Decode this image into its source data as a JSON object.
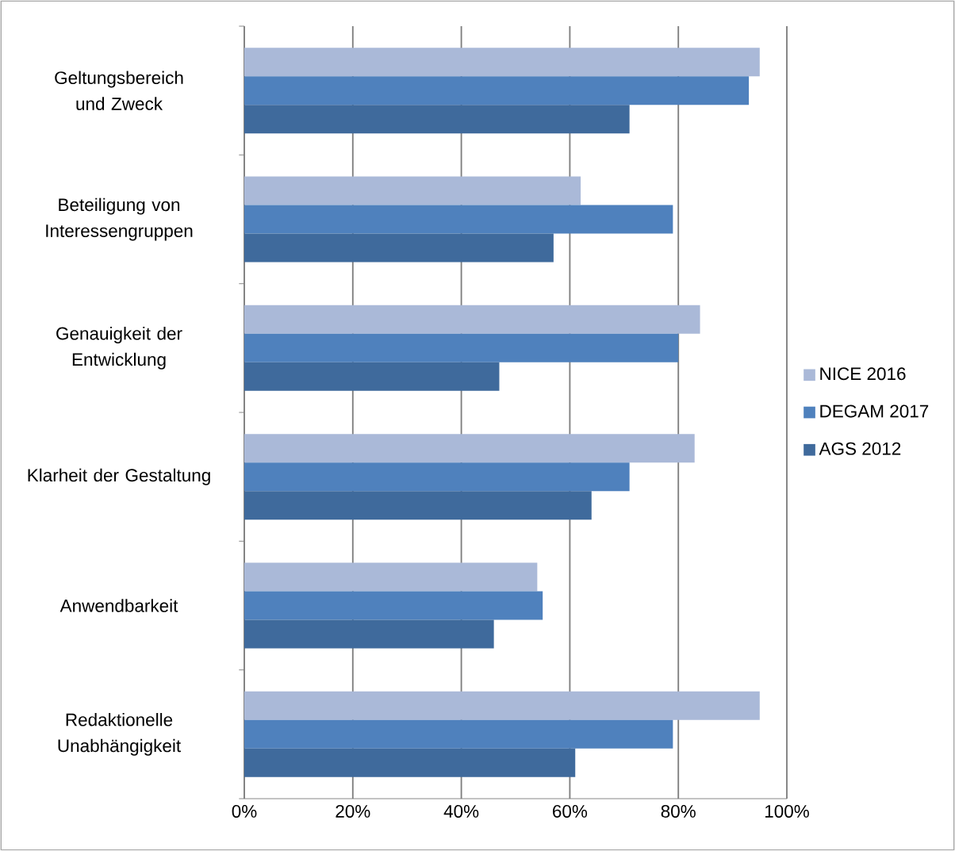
{
  "chart_data": {
    "type": "bar",
    "orientation": "horizontal",
    "categories": [
      "Geltungsbereich und Zweck",
      "Beteiligung von Interessengruppen",
      "Genauigkeit der Entwicklung",
      "Klarheit der Gestaltung",
      "Anwendbarkeit",
      "Redaktionelle Unabhängigkeit"
    ],
    "series": [
      {
        "name": "NICE 2016",
        "color": "#aab9d8",
        "values": [
          95,
          62,
          84,
          83,
          54,
          95
        ]
      },
      {
        "name": "DEGAM 2017",
        "color": "#4f81bd",
        "values": [
          93,
          79,
          80,
          71,
          55,
          79
        ]
      },
      {
        "name": "AGS 2012",
        "color": "#3f6a9c",
        "values": [
          71,
          57,
          47,
          64,
          46,
          61
        ]
      }
    ],
    "xlim": [
      0,
      100
    ],
    "xticks": [
      {
        "value": 0,
        "label": "0%"
      },
      {
        "value": 20,
        "label": "20%"
      },
      {
        "value": 40,
        "label": "40%"
      },
      {
        "value": 60,
        "label": "60%"
      },
      {
        "value": 80,
        "label": "80%"
      },
      {
        "value": 100,
        "label": "100%"
      }
    ],
    "grid": "x",
    "legend": "right"
  }
}
